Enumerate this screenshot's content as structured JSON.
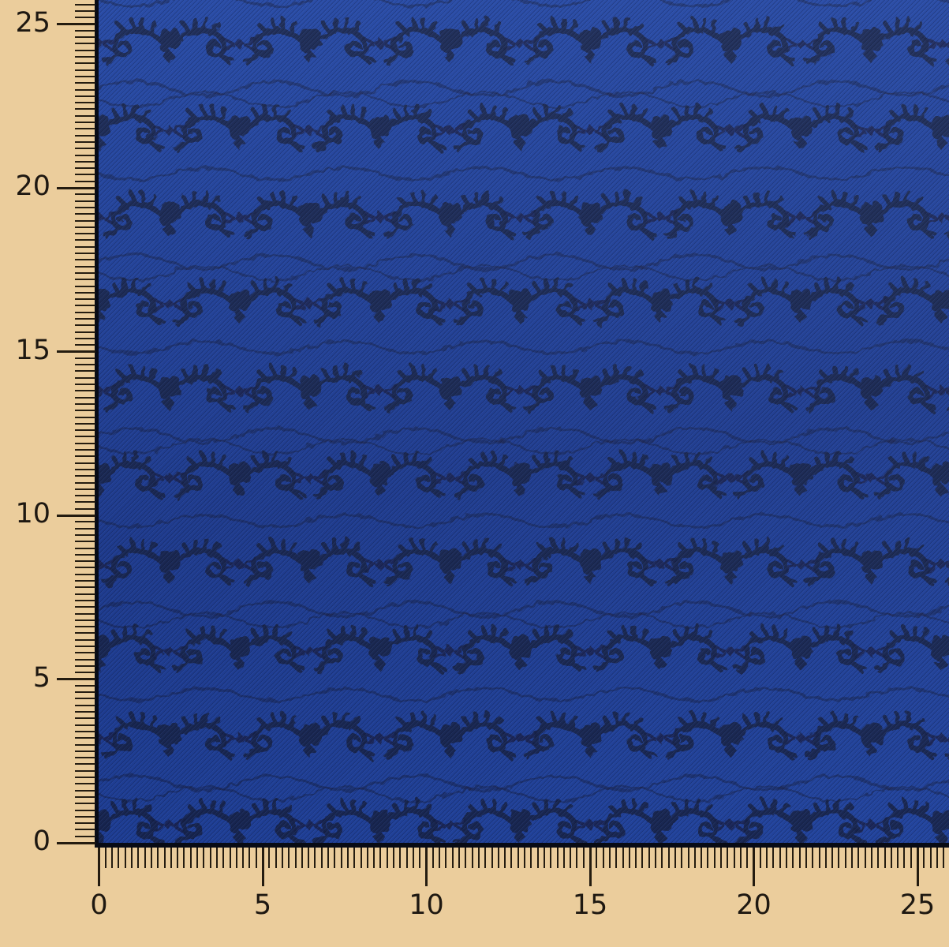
{
  "scene": {
    "subject": "royal blue jacquard fabric swatch with dark navy ornamental motif rows and wavy lines, photographed over a measuring grid",
    "rulers": {
      "vertical": {
        "labels": [
          "0",
          "5",
          "10",
          "15",
          "20",
          "25"
        ]
      },
      "horizontal": {
        "labels": [
          "0",
          "5",
          "10",
          "15",
          "20",
          "25"
        ]
      }
    }
  },
  "colors": {
    "ruler_background_tan": "#ebcd9c",
    "tick_brown_black": "#241c10",
    "label_dark": "#1e1811",
    "fabric_royal_blue": "#2348a8",
    "fabric_blue_shade": "#1e3d95",
    "motif_navy": "#19234a",
    "fabric_edge_black": "#080b15"
  }
}
